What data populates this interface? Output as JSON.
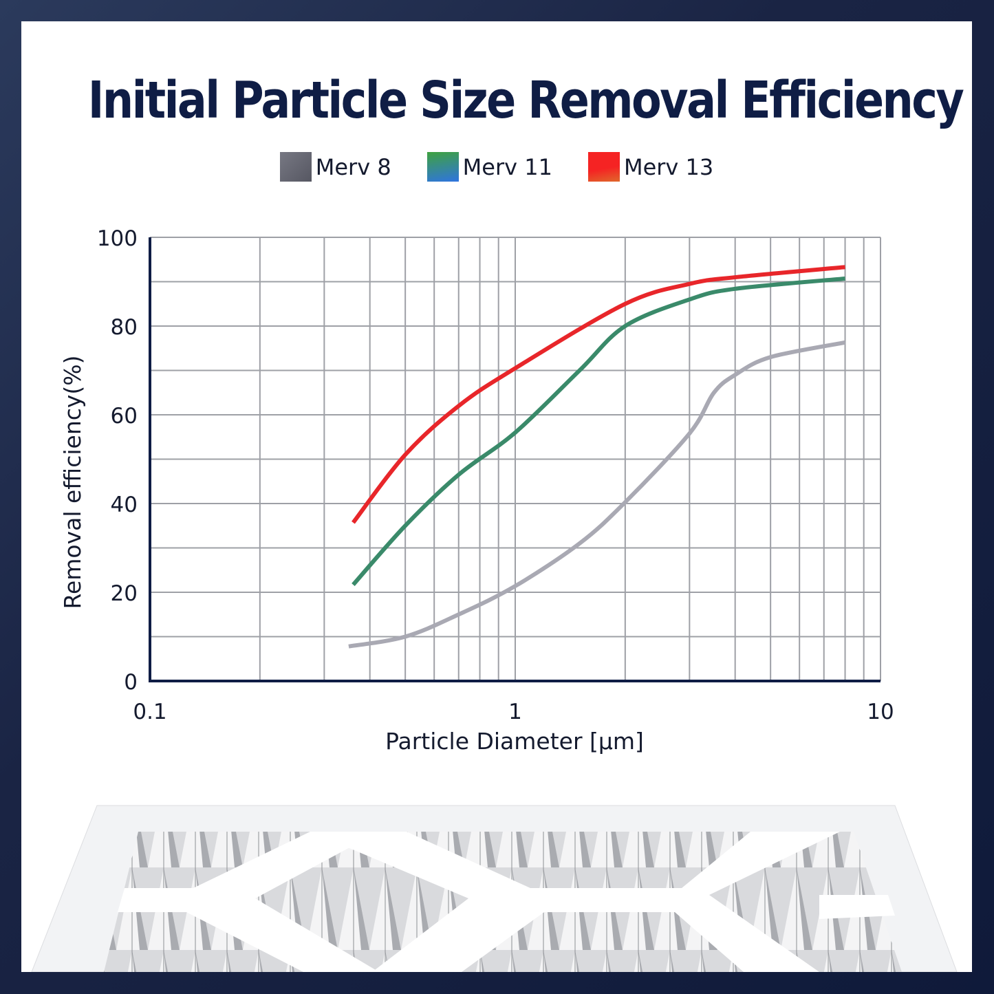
{
  "title": "Initial Particle Size Removal Efficiency",
  "chart_data": {
    "type": "line",
    "title": "Initial Particle Size Removal Efficiency",
    "xlabel": "Particle Diameter [µm]",
    "ylabel": "Removal efficiency(%)",
    "xscale": "log",
    "xlim": [
      0.1,
      10
    ],
    "ylim": [
      0,
      100
    ],
    "xticks": [
      "0.1",
      "1",
      "10"
    ],
    "yticks": [
      "0",
      "20",
      "40",
      "60",
      "80",
      "100"
    ],
    "grid": true,
    "legend_position": "top-center",
    "series": [
      {
        "name": "Merv 8",
        "color": "#5f6069",
        "line_color": "#a9a9b3",
        "x": [
          0.35,
          0.5,
          0.7,
          1,
          1.5,
          2,
          3,
          3.5,
          4,
          5,
          8
        ],
        "y": [
          7.8,
          10,
          15,
          21.4,
          31,
          40.3,
          55.8,
          65,
          69,
          73,
          76.3
        ]
      },
      {
        "name": "Merv 11",
        "color": "#3f9a54",
        "line_color": "#3a8a6a",
        "x": [
          0.36,
          0.5,
          0.7,
          1,
          1.5,
          2,
          3,
          4,
          8
        ],
        "y": [
          21.7,
          35,
          46.5,
          56,
          70,
          80,
          86,
          88.4,
          90.7
        ]
      },
      {
        "name": "Merv 13",
        "color": "#ee2a24",
        "line_color": "#e8262a",
        "x": [
          0.36,
          0.5,
          0.7,
          1,
          2,
          3,
          4,
          8
        ],
        "y": [
          35.7,
          51,
          62,
          70.5,
          85,
          89.5,
          91,
          93.3
        ]
      }
    ]
  }
}
